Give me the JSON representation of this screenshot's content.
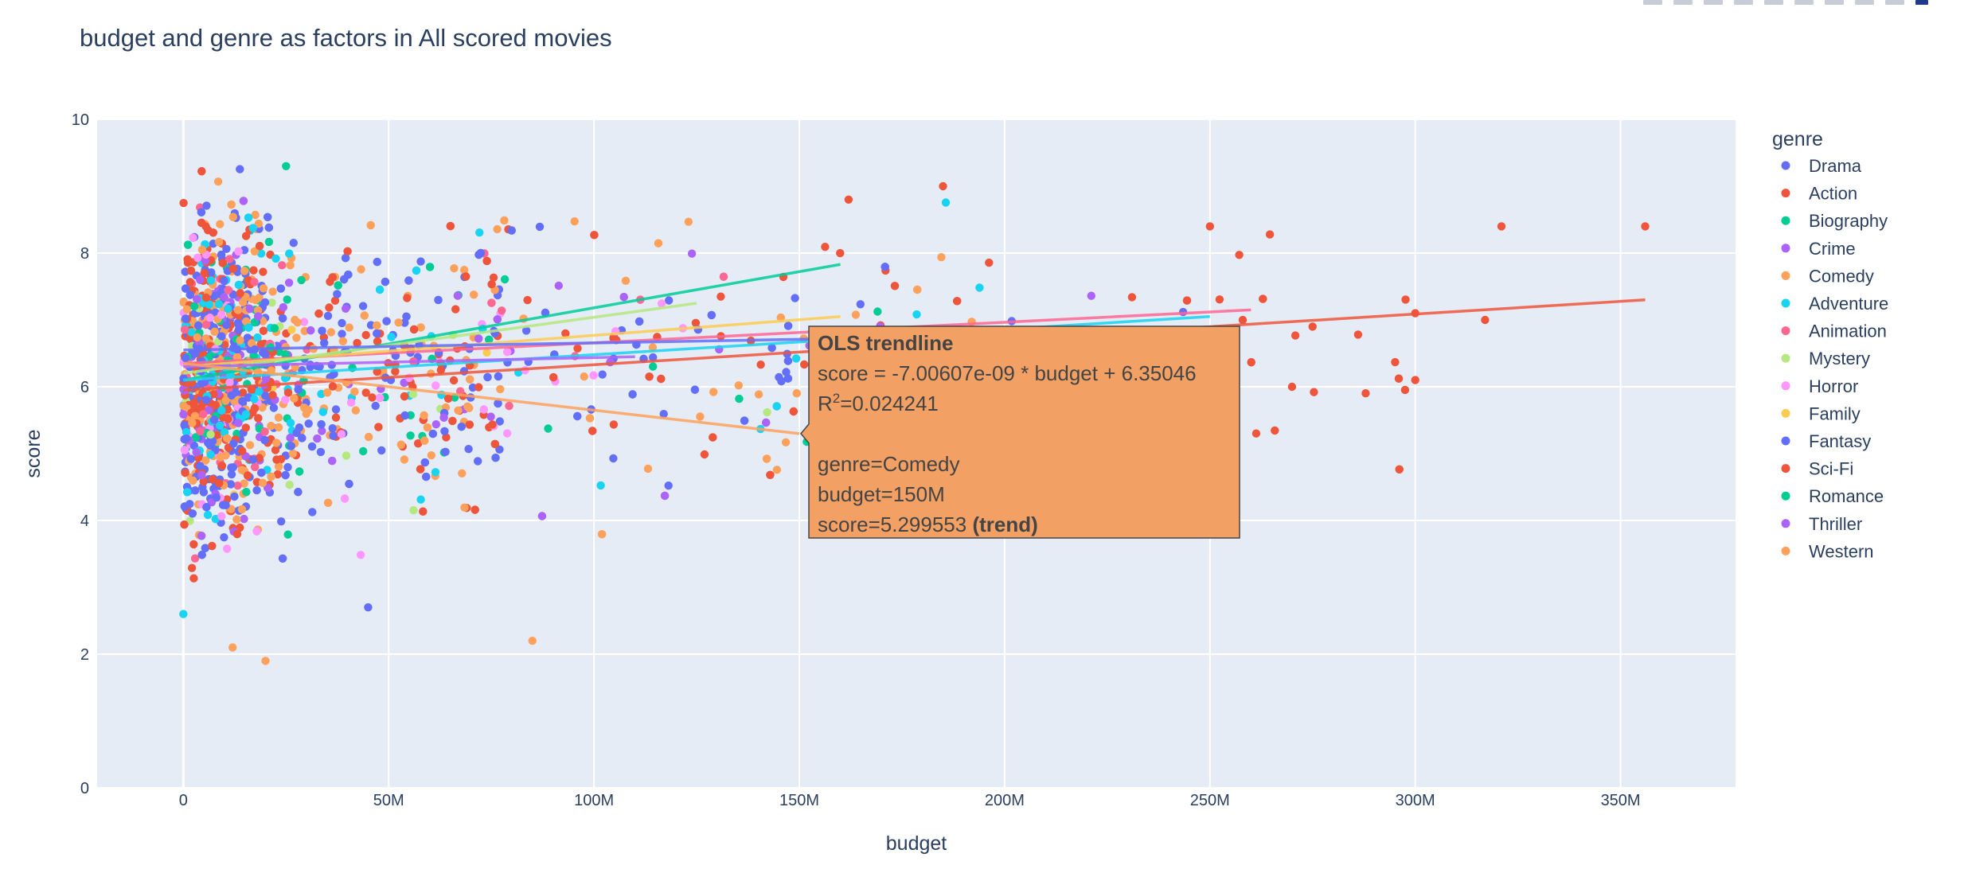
{
  "modebar": {
    "buttons": [
      "camera-icon",
      "zoom-icon",
      "pan-icon",
      "select-icon",
      "lasso-icon",
      "zoom-in-icon",
      "zoom-out-icon",
      "autoscale-icon",
      "reset-icon",
      "plotly-logo-icon"
    ]
  },
  "chart_data": {
    "type": "scatter",
    "title": "budget and genre as factors in All scored movies",
    "xlabel": "budget",
    "ylabel": "score",
    "xlim": [
      -21000000,
      378000000
    ],
    "ylim": [
      0,
      10
    ],
    "xticks": [
      0,
      50000000,
      100000000,
      150000000,
      200000000,
      250000000,
      300000000,
      350000000
    ],
    "xtick_labels": [
      "0",
      "50M",
      "100M",
      "150M",
      "200M",
      "250M",
      "300M",
      "350M"
    ],
    "yticks": [
      0,
      2,
      4,
      6,
      8,
      10
    ],
    "ytick_labels": [
      "0",
      "2",
      "4",
      "6",
      "8",
      "10"
    ],
    "grid": true,
    "legend": {
      "title": "genre",
      "position": "right"
    },
    "series": [
      {
        "name": "Drama",
        "color": "#636efa"
      },
      {
        "name": "Action",
        "color": "#EF553B"
      },
      {
        "name": "Biography",
        "color": "#00cc96"
      },
      {
        "name": "Crime",
        "color": "#ab63fa"
      },
      {
        "name": "Comedy",
        "color": "#FFA15A"
      },
      {
        "name": "Adventure",
        "color": "#19d3f3"
      },
      {
        "name": "Animation",
        "color": "#FF6692"
      },
      {
        "name": "Mystery",
        "color": "#B6E880"
      },
      {
        "name": "Horror",
        "color": "#FF97FF"
      },
      {
        "name": "Family",
        "color": "#FECB52"
      },
      {
        "name": "Fantasy",
        "color": "#636efa"
      },
      {
        "name": "Sci-Fi",
        "color": "#EF553B"
      },
      {
        "name": "Romance",
        "color": "#00cc96"
      },
      {
        "name": "Thriller",
        "color": "#ab63fa"
      },
      {
        "name": "Western",
        "color": "#FFA15A"
      }
    ],
    "trendlines": [
      {
        "genre": "Action",
        "color": "#EF553B",
        "x": [
          0,
          356000000
        ],
        "y": [
          5.95,
          7.3
        ]
      },
      {
        "genre": "Animation",
        "color": "#FF6692",
        "x": [
          0,
          260000000
        ],
        "y": [
          6.35,
          7.15
        ]
      },
      {
        "genre": "Biography",
        "color": "#00cc96",
        "x": [
          0,
          160000000
        ],
        "y": [
          6.1,
          7.83
        ]
      },
      {
        "genre": "Family",
        "color": "#FECB52",
        "x": [
          0,
          160000000
        ],
        "y": [
          6.3,
          7.05
        ]
      },
      {
        "genre": "Mystery",
        "color": "#B6E880",
        "x": [
          0,
          125000000
        ],
        "y": [
          6.2,
          7.25
        ]
      },
      {
        "genre": "Adventure",
        "color": "#19d3f3",
        "x": [
          0,
          250000000
        ],
        "y": [
          6.1,
          7.05
        ]
      },
      {
        "genre": "Drama",
        "color": "#636efa",
        "x": [
          0,
          160000000
        ],
        "y": [
          6.55,
          6.72
        ]
      },
      {
        "genre": "Crime",
        "color": "#ab63fa",
        "x": [
          0,
          110000000
        ],
        "y": [
          6.3,
          6.45
        ]
      },
      {
        "genre": "Comedy",
        "color": "#FFA15A",
        "x": [
          0,
          150000000
        ],
        "y": [
          6.35046,
          5.299553
        ]
      }
    ],
    "hover": {
      "title": "OLS trendline",
      "equation": "score = -7.00607e-09 * budget + 6.35046",
      "r2_label": "R",
      "r2_sup": "2",
      "r2_value": "=0.024241",
      "genre_line": "genre=Comedy",
      "budget_line": "budget=150M",
      "score_line": "score=5.299553",
      "trend_tag": "(trend)",
      "background": "#F2A064",
      "anchor": {
        "x": 150000000,
        "y": 5.299553
      }
    }
  }
}
